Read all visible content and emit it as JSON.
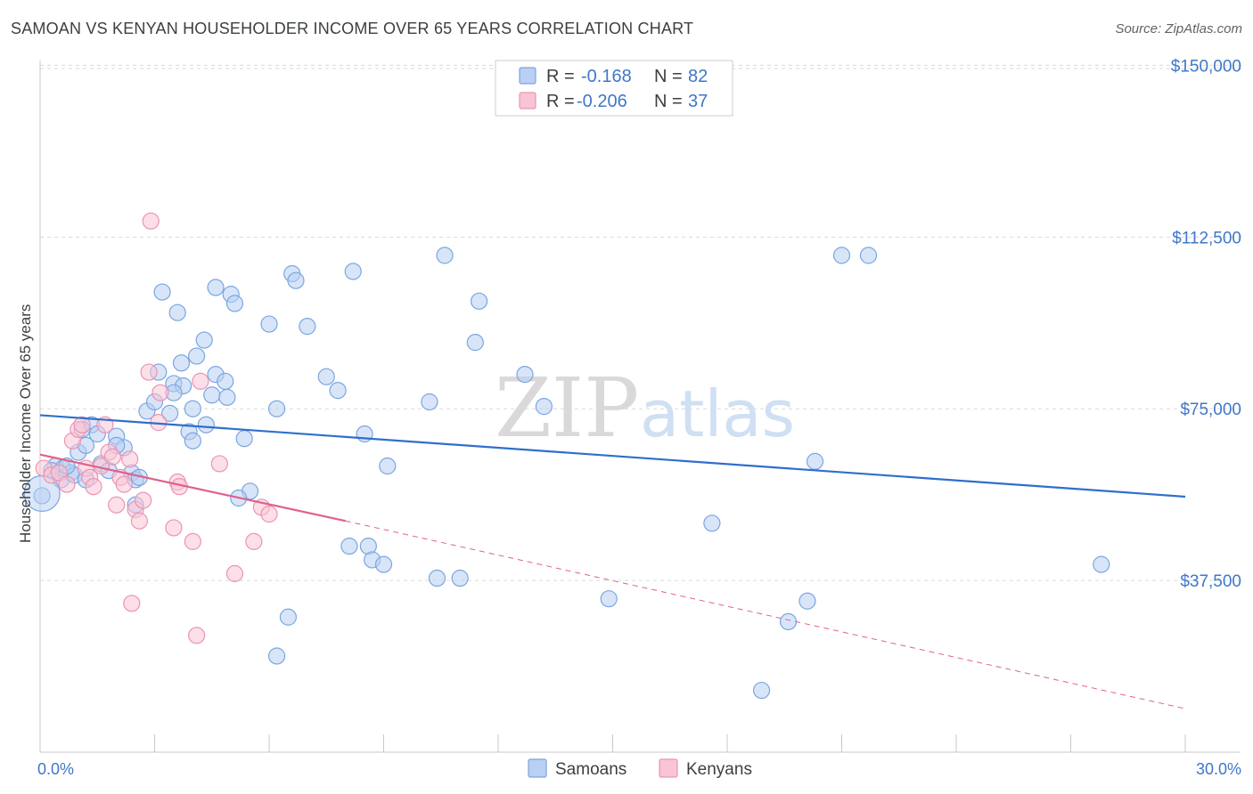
{
  "title": "SAMOAN VS KENYAN HOUSEHOLDER INCOME OVER 65 YEARS CORRELATION CHART",
  "source": "Source: ZipAtlas.com",
  "watermark": {
    "zip": "ZIP",
    "atlas": "atlas"
  },
  "legend": {
    "rows": [
      {
        "r_label": "R =",
        "r_value": "-0.168",
        "n_label": "N =",
        "n_value": "82"
      },
      {
        "r_label": "R =",
        "r_value": "-0.206",
        "n_label": "N =",
        "n_value": "37"
      }
    ]
  },
  "colors": {
    "samoans_fill": "#b8d0f3",
    "samoans_stroke": "#7aa6e0",
    "samoans_line": "#2f6fcb",
    "kenyans_fill": "#f9c4d5",
    "kenyans_stroke": "#ec93b2",
    "kenyans_line": "#e0608c",
    "axis_text": "#3f77c9",
    "grid": "#d9d9d9"
  },
  "chart_data": {
    "type": "scatter",
    "title": "SAMOAN VS KENYAN HOUSEHOLDER INCOME OVER 65 YEARS CORRELATION CHART",
    "xlabel": "",
    "ylabel": "Householder Income Over 65 years",
    "x_unit": "%",
    "xlim": [
      0,
      30
    ],
    "ylim": [
      0,
      153000
    ],
    "x_tick_labels": [
      "0.0%",
      "30.0%"
    ],
    "y_ticks": [
      37500,
      75000,
      112500,
      150000
    ],
    "y_tick_labels": [
      "$37,500",
      "$75,000",
      "$112,500",
      "$150,000"
    ],
    "grid": "horizontal dashed",
    "legend_position": "top-center",
    "series": [
      {
        "name": "Samoans",
        "r": -0.168,
        "n": 82,
        "trend": {
          "x": [
            0,
            30
          ],
          "y": [
            73600,
            55800
          ]
        },
        "points": [
          [
            0.05,
            56000
          ],
          [
            0.4,
            62500
          ],
          [
            0.6,
            62000
          ],
          [
            0.8,
            61000
          ],
          [
            0.55,
            59500
          ],
          [
            0.9,
            60500
          ],
          [
            1.0,
            65500
          ],
          [
            1.2,
            67000
          ],
          [
            1.35,
            71500
          ],
          [
            1.5,
            69500
          ],
          [
            1.6,
            63000
          ],
          [
            1.8,
            61500
          ],
          [
            2.0,
            69000
          ],
          [
            2.2,
            66500
          ],
          [
            2.4,
            61000
          ],
          [
            2.5,
            59500
          ],
          [
            2.6,
            60000
          ],
          [
            2.8,
            74500
          ],
          [
            3.0,
            76500
          ],
          [
            3.1,
            83000
          ],
          [
            3.2,
            100500
          ],
          [
            3.5,
            80500
          ],
          [
            3.4,
            74000
          ],
          [
            3.6,
            96000
          ],
          [
            3.7,
            85000
          ],
          [
            3.75,
            80000
          ],
          [
            3.9,
            70000
          ],
          [
            4.0,
            68000
          ],
          [
            4.0,
            75000
          ],
          [
            4.1,
            86500
          ],
          [
            4.3,
            90000
          ],
          [
            4.35,
            71500
          ],
          [
            4.5,
            78000
          ],
          [
            4.6,
            82500
          ],
          [
            4.6,
            101500
          ],
          [
            4.85,
            81000
          ],
          [
            4.9,
            77500
          ],
          [
            5.0,
            100000
          ],
          [
            5.1,
            98000
          ],
          [
            5.35,
            68500
          ],
          [
            5.5,
            57000
          ],
          [
            6.0,
            93500
          ],
          [
            6.2,
            75000
          ],
          [
            6.6,
            104500
          ],
          [
            6.7,
            103000
          ],
          [
            7.0,
            93000
          ],
          [
            7.5,
            82000
          ],
          [
            7.8,
            79000
          ],
          [
            8.2,
            105000
          ],
          [
            8.5,
            69500
          ],
          [
            8.6,
            45000
          ],
          [
            8.7,
            42000
          ],
          [
            9.0,
            41000
          ],
          [
            9.1,
            62500
          ],
          [
            10.2,
            76500
          ],
          [
            10.4,
            38000
          ],
          [
            10.6,
            108500
          ],
          [
            11.0,
            38000
          ],
          [
            11.5,
            98500
          ],
          [
            11.4,
            89500
          ],
          [
            12.7,
            82500
          ],
          [
            13.2,
            75500
          ],
          [
            14.9,
            33500
          ],
          [
            17.6,
            50000
          ],
          [
            18.9,
            13500
          ],
          [
            19.6,
            28500
          ],
          [
            20.1,
            33000
          ],
          [
            20.3,
            63500
          ],
          [
            21.0,
            108500
          ],
          [
            21.7,
            108500
          ],
          [
            27.8,
            41000
          ],
          [
            8.1,
            45000
          ],
          [
            6.5,
            29500
          ],
          [
            6.2,
            21000
          ],
          [
            2.5,
            54000
          ],
          [
            1.2,
            59500
          ],
          [
            5.2,
            55500
          ],
          [
            1.1,
            70500
          ],
          [
            0.7,
            62500
          ],
          [
            0.3,
            61500
          ],
          [
            3.5,
            78500
          ],
          [
            2.0,
            67000
          ]
        ]
      },
      {
        "name": "Kenyans",
        "r": -0.206,
        "n": 37,
        "trend": {
          "x": [
            0,
            8
          ],
          "y": [
            65000,
            50500
          ]
        },
        "trend_extension": {
          "x": [
            8,
            30
          ],
          "y": [
            50500,
            9500
          ]
        },
        "points": [
          [
            0.1,
            62000
          ],
          [
            0.3,
            60500
          ],
          [
            0.5,
            61000
          ],
          [
            0.7,
            58500
          ],
          [
            0.85,
            68000
          ],
          [
            1.0,
            70500
          ],
          [
            1.1,
            71500
          ],
          [
            1.2,
            62000
          ],
          [
            1.3,
            60000
          ],
          [
            1.4,
            58000
          ],
          [
            1.6,
            62500
          ],
          [
            1.7,
            71500
          ],
          [
            1.8,
            65500
          ],
          [
            1.9,
            64500
          ],
          [
            2.0,
            54000
          ],
          [
            2.1,
            60000
          ],
          [
            2.2,
            58500
          ],
          [
            2.35,
            64000
          ],
          [
            2.4,
            32500
          ],
          [
            2.5,
            53000
          ],
          [
            2.6,
            50500
          ],
          [
            2.7,
            55000
          ],
          [
            2.85,
            83000
          ],
          [
            2.9,
            116000
          ],
          [
            3.1,
            72000
          ],
          [
            3.15,
            78500
          ],
          [
            3.5,
            49000
          ],
          [
            3.6,
            59000
          ],
          [
            3.65,
            58000
          ],
          [
            4.0,
            46000
          ],
          [
            4.1,
            25500
          ],
          [
            4.2,
            81000
          ],
          [
            4.7,
            63000
          ],
          [
            5.1,
            39000
          ],
          [
            5.6,
            46000
          ],
          [
            5.8,
            53500
          ],
          [
            6.0,
            52000
          ]
        ]
      }
    ]
  },
  "bottom_legend": [
    "Samoans",
    "Kenyans"
  ]
}
